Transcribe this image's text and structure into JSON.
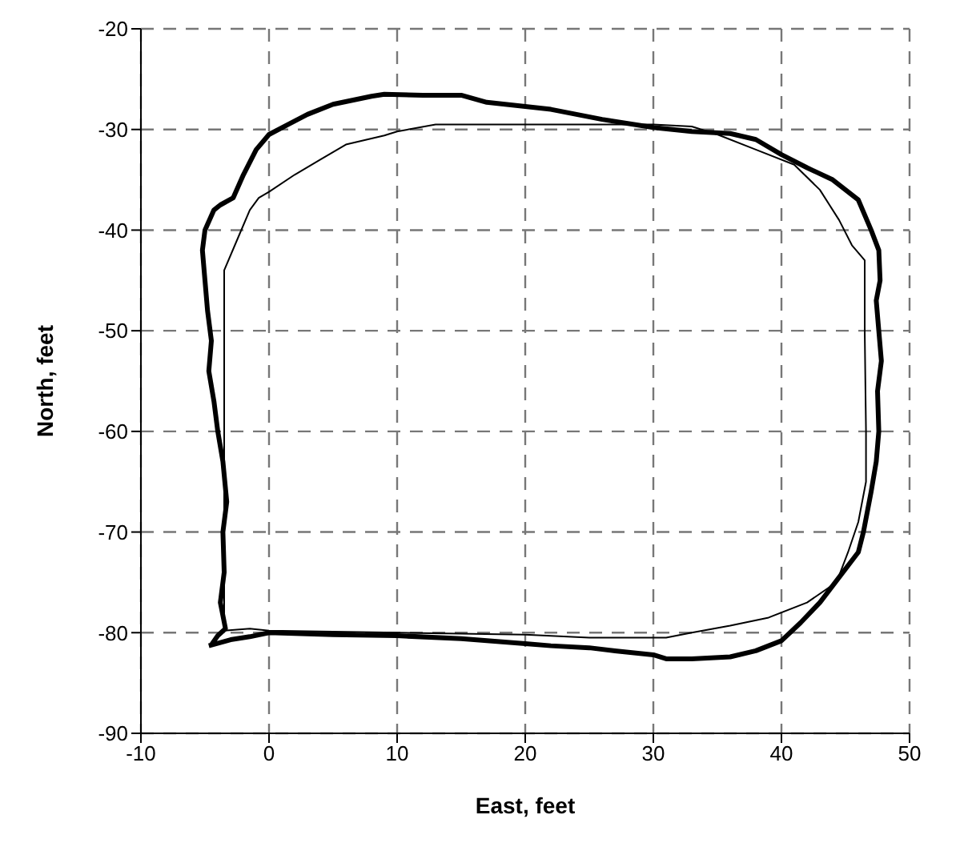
{
  "chart_data": {
    "type": "line",
    "xlabel": "East, feet",
    "ylabel": "North, feet",
    "xlim": [
      -10,
      50
    ],
    "xticks": [
      -10,
      0,
      10,
      20,
      30,
      40,
      50
    ],
    "ylim": [
      -90,
      -20
    ],
    "yticks": [
      -90,
      -80,
      -70,
      -60,
      -50,
      -40,
      -30,
      -20
    ],
    "grid": true,
    "line_style": "solid",
    "marker": "none",
    "series": [
      {
        "color": "#000000",
        "x": [
          -4.5,
          -4,
          -3.4,
          -3.8,
          -3.5,
          -3.6,
          -3.3,
          -3.6,
          -4,
          -4.3,
          -4.7,
          -4.5,
          -4.8,
          -5,
          -5.2,
          -5,
          -4.3,
          -3.8,
          -2.8,
          -2,
          -1,
          0,
          1.5,
          3,
          5,
          8,
          9,
          12,
          15,
          17,
          22,
          26,
          30,
          33,
          36,
          38,
          40,
          42,
          44,
          46,
          47,
          47.6,
          47.7,
          47.4,
          47.6,
          47.8,
          47.5,
          47.6,
          47.4,
          47,
          46.4,
          46,
          44.5,
          43,
          41.5,
          40,
          38,
          36,
          33,
          31,
          30,
          27,
          25,
          22,
          20,
          15,
          10,
          5,
          0,
          -1.5,
          -3,
          -4.7
        ],
        "values": [
          -81.2,
          -80.3,
          -79.6,
          -77,
          -74,
          -70,
          -67,
          -63,
          -60,
          -57,
          -54,
          -51,
          -48,
          -45,
          -42,
          -40,
          -38,
          -37.5,
          -36.8,
          -34.5,
          -32,
          -30.5,
          -29.5,
          -28.5,
          -27.5,
          -26.7,
          -26.5,
          -26.6,
          -26.6,
          -27.3,
          -28,
          -29,
          -29.8,
          -30.2,
          -30.4,
          -31,
          -32.5,
          -33.8,
          -35,
          -37,
          -40,
          -42,
          -45,
          -47,
          -50,
          -53,
          -56,
          -60,
          -63,
          -66,
          -70,
          -72,
          -74.5,
          -77,
          -79,
          -80.8,
          -81.8,
          -82.4,
          -82.6,
          -82.6,
          -82.2,
          -81.8,
          -81.5,
          -81.3,
          -81.1,
          -80.6,
          -80.3,
          -80.2,
          -80,
          -80.4,
          -80.7,
          -81.3
        ]
      },
      {
        "color": "#000000",
        "x": [
          -3.5,
          -3.5,
          -2.5,
          -1.5,
          -0.8,
          0,
          2,
          4,
          6,
          9,
          10,
          13,
          20,
          30,
          33,
          35,
          38,
          41,
          43,
          44.5,
          45.5,
          46.5,
          46.5,
          46.6,
          46.6,
          46,
          45.2,
          44.3,
          42,
          39,
          36,
          33,
          31,
          25,
          20,
          10,
          0,
          -1.5,
          -3.5
        ],
        "values": [
          -80,
          -44,
          -41,
          -38,
          -36.8,
          -36.2,
          -34.5,
          -33,
          -31.5,
          -30.6,
          -30.2,
          -29.5,
          -29.5,
          -29.5,
          -29.7,
          -30.5,
          -32,
          -33.5,
          -36,
          -39,
          -41.5,
          -43,
          -50,
          -60,
          -65,
          -69,
          -72,
          -75,
          -77,
          -78.5,
          -79.3,
          -80,
          -80.5,
          -80.5,
          -80.2,
          -80,
          -79.8,
          -79.6,
          -79.8
        ]
      }
    ]
  }
}
